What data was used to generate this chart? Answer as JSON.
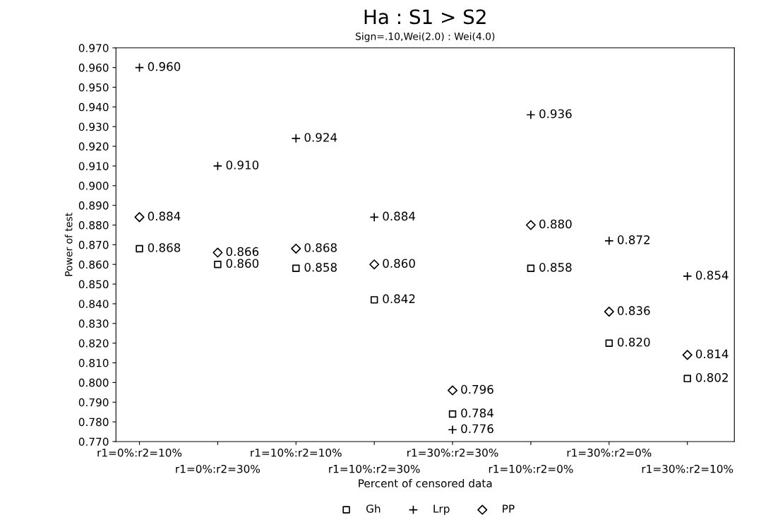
{
  "chart_data": {
    "type": "scatter",
    "title": "Ha : S1 > S2",
    "subtitle": "Sign=.10,Wei(2.0) : Wei(4.0)",
    "xlabel": "Percent of censored data",
    "ylabel": "Power of test",
    "categories": [
      "r1=0%:r2=10%",
      "r1=0%:r2=30%",
      "r1=10%:r2=10%",
      "r1=10%:r2=30%",
      "r1=30%:r2=30%",
      "r1=10%:r2=0%",
      "r1=30%:r2=0%",
      "r1=30%:r2=10%"
    ],
    "series": [
      {
        "name": "Gh",
        "color": "#000000",
        "marker": "square",
        "values": [
          0.868,
          0.86,
          0.858,
          0.842,
          0.784,
          0.858,
          0.82,
          0.802
        ],
        "value_labels": [
          "0.868",
          "0.860",
          "0.858",
          "0.842",
          "0.784",
          "0.858",
          "0.820",
          "0.802"
        ]
      },
      {
        "name": "Lrp",
        "color": "#000000",
        "marker": "cross",
        "values": [
          0.96,
          0.91,
          0.924,
          0.884,
          0.776,
          0.936,
          0.872,
          0.854
        ],
        "value_labels": [
          "0.960",
          "0.910",
          "0.924",
          "0.884",
          "0.776",
          "0.936",
          "0.872",
          "0.854"
        ]
      },
      {
        "name": "PP",
        "color": "#000000",
        "marker": "diamond",
        "values": [
          0.884,
          0.866,
          0.868,
          0.86,
          0.796,
          0.88,
          0.836,
          0.814
        ],
        "value_labels": [
          "0.884",
          "0.866",
          "0.868",
          "0.860",
          "0.796",
          "0.880",
          "0.836",
          "0.814"
        ]
      }
    ],
    "ylim": [
      0.77,
      0.97
    ],
    "yticks": [
      {
        "value": 0.77,
        "label": "0.770"
      },
      {
        "value": 0.78,
        "label": "0.780"
      },
      {
        "value": 0.79,
        "label": "0.790"
      },
      {
        "value": 0.8,
        "label": "0.800"
      },
      {
        "value": 0.81,
        "label": "0.810"
      },
      {
        "value": 0.82,
        "label": "0.820"
      },
      {
        "value": 0.83,
        "label": "0.830"
      },
      {
        "value": 0.84,
        "label": "0.840"
      },
      {
        "value": 0.85,
        "label": "0.850"
      },
      {
        "value": 0.86,
        "label": "0.860"
      },
      {
        "value": 0.87,
        "label": "0.870"
      },
      {
        "value": 0.88,
        "label": "0.880"
      },
      {
        "value": 0.89,
        "label": "0.890"
      },
      {
        "value": 0.9,
        "label": "0.900"
      },
      {
        "value": 0.91,
        "label": "0.910"
      },
      {
        "value": 0.92,
        "label": "0.920"
      },
      {
        "value": 0.93,
        "label": "0.930"
      },
      {
        "value": 0.94,
        "label": "0.940"
      },
      {
        "value": 0.95,
        "label": "0.950"
      },
      {
        "value": 0.96,
        "label": "0.960"
      },
      {
        "value": 0.97,
        "label": "0.970"
      }
    ],
    "grid": false,
    "legend": "bottom"
  }
}
